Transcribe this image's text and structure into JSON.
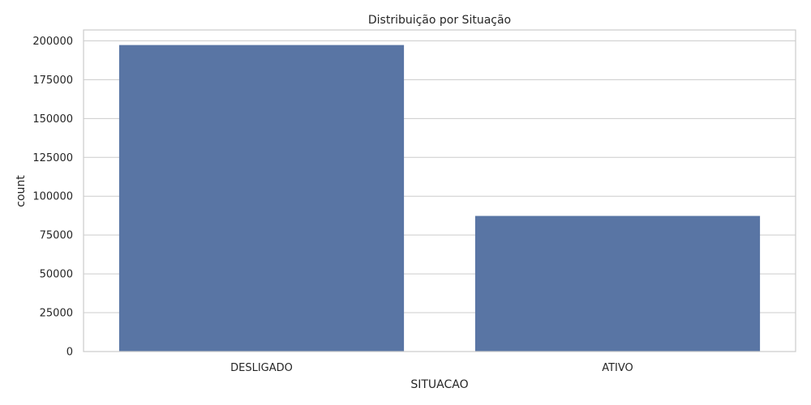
{
  "chart_data": {
    "type": "bar",
    "title": "Distribuição por Situação",
    "xlabel": "SITUACAO",
    "ylabel": "count",
    "categories": [
      "DESLIGADO",
      "ATIVO"
    ],
    "values": [
      197300,
      87300
    ],
    "ylim": [
      0,
      207000
    ],
    "yticks": [
      0,
      25000,
      50000,
      75000,
      100000,
      125000,
      150000,
      175000,
      200000
    ],
    "ytick_labels": [
      "0",
      "25000",
      "50000",
      "75000",
      "100000",
      "125000",
      "150000",
      "175000",
      "200000"
    ],
    "grid": "horizontal",
    "bar_color": "#5975a4"
  }
}
